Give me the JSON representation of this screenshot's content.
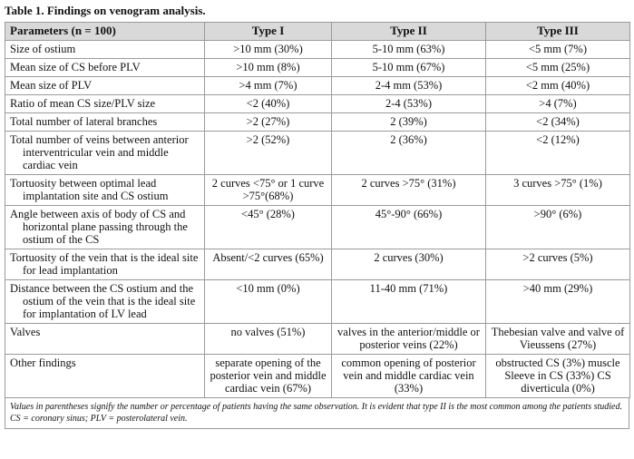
{
  "title": "Table 1. Findings on venogram analysis.",
  "table": {
    "header": [
      "Parameters (n = 100)",
      "Type I",
      "Type II",
      "Type III"
    ],
    "rows": [
      [
        "Size of ostium",
        ">10 mm (30%)",
        "5-10 mm (63%)",
        "<5 mm (7%)"
      ],
      [
        "Mean size of CS before PLV",
        ">10 mm (8%)",
        "5-10 mm (67%)",
        "<5 mm (25%)"
      ],
      [
        "Mean size of PLV",
        ">4 mm (7%)",
        "2-4 mm (53%)",
        "<2 mm (40%)"
      ],
      [
        "Ratio of mean CS size/PLV size",
        "<2 (40%)",
        "2-4 (53%)",
        ">4 (7%)"
      ],
      [
        "Total number of lateral branches",
        ">2 (27%)",
        "2 (39%)",
        "<2 (34%)"
      ],
      [
        "Total number of veins between anterior interventricular vein and middle cardiac vein",
        ">2 (52%)",
        "2 (36%)",
        "<2 (12%)"
      ],
      [
        "Tortuosity between optimal lead implantation site and CS ostium",
        "2 curves <75° or 1 curve >75°(68%)",
        "2 curves >75° (31%)",
        "3 curves >75° (1%)"
      ],
      [
        "Angle between axis of body of CS and horizontal plane passing through the ostium of the CS",
        "<45° (28%)",
        "45°-90° (66%)",
        ">90° (6%)"
      ],
      [
        "Tortuosity of the vein that is the ideal site for lead implantation",
        "Absent/<2 curves (65%)",
        "2 curves (30%)",
        ">2 curves (5%)"
      ],
      [
        "Distance between the CS ostium and the ostium of the vein that is the ideal site for implantation of LV lead",
        "<10 mm (0%)",
        "11-40 mm (71%)",
        ">40 mm (29%)"
      ],
      [
        "Valves",
        "no valves (51%)",
        "valves in the anterior/middle or posterior veins (22%)",
        "Thebesian valve and valve of Vieussens (27%)"
      ],
      [
        "Other findings",
        "separate opening of the posterior vein and middle cardiac vein (67%)",
        "common opening of posterior vein and middle cardiac vein (33%)",
        "obstructed CS (3%) muscle Sleeve in CS (33%) CS diverticula (0%)"
      ]
    ]
  },
  "footnote": "Values in parentheses signify the number or percentage of patients having the same observation. It is evident that type II is the most common among the patients studied. CS = coronary sinus; PLV = posterolateral vein."
}
